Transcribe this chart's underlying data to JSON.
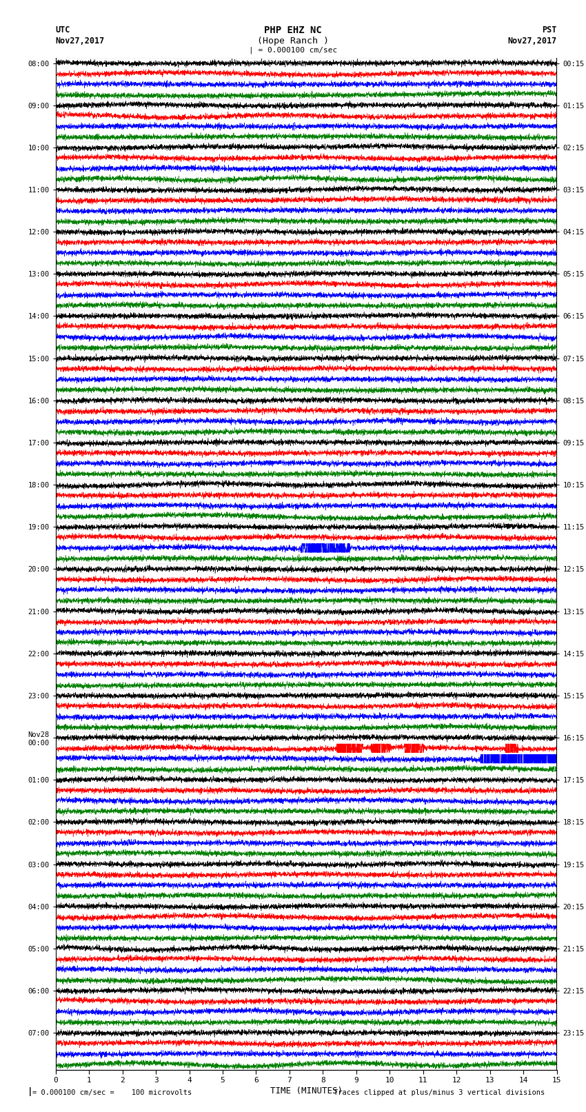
{
  "title_line1": "PHP EHZ NC",
  "title_line2": "(Hope Ranch )",
  "title_line3": "| = 0.000100 cm/sec",
  "left_label_top": "UTC",
  "left_label_date": "Nov27,2017",
  "right_label_top": "PST",
  "right_label_date": "Nov27,2017",
  "xlabel": "TIME (MINUTES)",
  "bottom_left_note": "= 0.000100 cm/sec =    100 microvolts",
  "bottom_right_note": "Traces clipped at plus/minus 3 vertical divisions",
  "utc_labels": [
    "08:00",
    "09:00",
    "10:00",
    "11:00",
    "12:00",
    "13:00",
    "14:00",
    "15:00",
    "16:00",
    "17:00",
    "18:00",
    "19:00",
    "20:00",
    "21:00",
    "22:00",
    "23:00",
    "Nov28\n00:00",
    "01:00",
    "02:00",
    "03:00",
    "04:00",
    "05:00",
    "06:00",
    "07:00"
  ],
  "pst_labels": [
    "00:15",
    "01:15",
    "02:15",
    "03:15",
    "04:15",
    "05:15",
    "06:15",
    "07:15",
    "08:15",
    "09:15",
    "10:15",
    "11:15",
    "12:15",
    "13:15",
    "14:15",
    "15:15",
    "16:15",
    "17:15",
    "18:15",
    "19:15",
    "20:15",
    "21:15",
    "22:15",
    "23:15"
  ],
  "n_rows": 96,
  "n_hours": 24,
  "colors": [
    "black",
    "red",
    "blue",
    "green"
  ],
  "bg_color": "white",
  "xticks": [
    0,
    1,
    2,
    3,
    4,
    5,
    6,
    7,
    8,
    9,
    10,
    11,
    12,
    13,
    14,
    15
  ],
  "xlim": [
    0,
    15
  ],
  "random_seed": 12345
}
